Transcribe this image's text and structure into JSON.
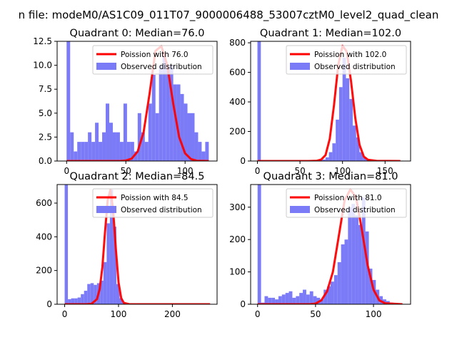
{
  "suptitle": "n file: modeM0/AS1C09_011T07_9000006488_53007cztM0_level2_quad_clean",
  "colors": {
    "bar": "#7b7bf7",
    "curve": "#ff0000",
    "axis": "#000000",
    "background": "#ffffff"
  },
  "chart_data": [
    {
      "type": "bar",
      "title": "Quadrant 0: Median=76.0",
      "xlim": [
        -8,
        127
      ],
      "ylim": [
        0,
        12.5
      ],
      "xticks": [
        0,
        50,
        100
      ],
      "xtick_labels": [
        "0",
        "50",
        "100"
      ],
      "yticks": [
        0,
        2.5,
        5,
        7.5,
        10,
        12.5
      ],
      "ytick_labels": [
        "0.0",
        "2.5",
        "5.0",
        "7.5",
        "10.0",
        "12.5"
      ],
      "legend": {
        "placement": "top-right",
        "curve_label": "Poission with 76.0",
        "bar_label": "Observed distribution"
      },
      "bin_edges": [
        0,
        3,
        6,
        9,
        12,
        15,
        18,
        21,
        24,
        27,
        30,
        33,
        36,
        39,
        42,
        45,
        48,
        51,
        54,
        57,
        60,
        63,
        66,
        69,
        72,
        75,
        78,
        81,
        84,
        87,
        90,
        93,
        96,
        99,
        102,
        105,
        108,
        111,
        114,
        117,
        120
      ],
      "counts": [
        12.5,
        3,
        1,
        2,
        2,
        2,
        3,
        2,
        4,
        2,
        3,
        6,
        4,
        3,
        3,
        2,
        6,
        2,
        2,
        1,
        5,
        3,
        2,
        6,
        9,
        5,
        10,
        11,
        10,
        10,
        8,
        8,
        7,
        6,
        5,
        5,
        3,
        2,
        1,
        2
      ],
      "curve": {
        "x": [
          0,
          45,
          50,
          55,
          60,
          65,
          70,
          75,
          80,
          85,
          90,
          95,
          100,
          105,
          110,
          120
        ],
        "y": [
          0,
          0,
          0.05,
          0.25,
          1,
          3,
          7,
          11.5,
          12,
          10,
          6,
          2.5,
          0.8,
          0.2,
          0.03,
          0
        ]
      }
    },
    {
      "type": "bar",
      "title": "Quadrant 1: Median=102.0",
      "xlim": [
        -8,
        180
      ],
      "ylim": [
        0,
        810
      ],
      "xticks": [
        0,
        50,
        100,
        150
      ],
      "xtick_labels": [
        "0",
        "50",
        "100",
        "150"
      ],
      "yticks": [
        0,
        200,
        400,
        600,
        800
      ],
      "ytick_labels": [
        "0",
        "200",
        "400",
        "600",
        "800"
      ],
      "legend": {
        "placement": "top-right",
        "curve_label": "Poission with 102.0",
        "bar_label": "Observed distribution"
      },
      "bin_edges": [
        0,
        4,
        8,
        12,
        16,
        20,
        24,
        28,
        32,
        36,
        40,
        44,
        48,
        52,
        56,
        60,
        64,
        68,
        72,
        76,
        80,
        84,
        88,
        92,
        96,
        100,
        104,
        108,
        112,
        116,
        120,
        124,
        128,
        132,
        136,
        140,
        144,
        148,
        152,
        156,
        160,
        164,
        168
      ],
      "counts": [
        810,
        2,
        2,
        1,
        1,
        1,
        1,
        1,
        1,
        1,
        1,
        1,
        1,
        1,
        1,
        1,
        2,
        3,
        5,
        10,
        25,
        60,
        120,
        280,
        500,
        700,
        560,
        420,
        240,
        160,
        60,
        25,
        10,
        4,
        3,
        2,
        2,
        1,
        1,
        1,
        1,
        1
      ],
      "curve": {
        "x": [
          0,
          60,
          70,
          75,
          80,
          85,
          90,
          95,
          100,
          105,
          110,
          115,
          120,
          125,
          130,
          140,
          168
        ],
        "y": [
          0,
          0,
          2,
          10,
          40,
          150,
          380,
          650,
          780,
          740,
          540,
          290,
          110,
          30,
          8,
          1,
          0
        ]
      }
    },
    {
      "type": "bar",
      "title": "Quadrant 2: Median=84.5",
      "xlim": [
        -14,
        283
      ],
      "ylim": [
        0,
        710
      ],
      "xticks": [
        0,
        100,
        200
      ],
      "xtick_labels": [
        "0",
        "100",
        "200"
      ],
      "yticks": [
        0,
        200,
        400,
        600
      ],
      "ytick_labels": [
        "0",
        "200",
        "400",
        "600"
      ],
      "legend": {
        "placement": "top-right",
        "curve_label": "Poission with 84.5",
        "bar_label": "Observed distribution"
      },
      "bin_edges": [
        0,
        6,
        12,
        18,
        24,
        30,
        36,
        42,
        48,
        54,
        60,
        66,
        72,
        78,
        84,
        90,
        96,
        102,
        108,
        114,
        120,
        126,
        132,
        138,
        144,
        150,
        156,
        162,
        168,
        174,
        180,
        186,
        192,
        198,
        204,
        210,
        216,
        222,
        228,
        234,
        240,
        246,
        252,
        258,
        264,
        270
      ],
      "counts": [
        710,
        30,
        35,
        35,
        40,
        60,
        80,
        120,
        125,
        115,
        125,
        140,
        250,
        480,
        680,
        460,
        120,
        35,
        5,
        2,
        1,
        1,
        1,
        1,
        1,
        1,
        1,
        1,
        1,
        1,
        1,
        1,
        1,
        1,
        1,
        1,
        1,
        1,
        1,
        1,
        1,
        1,
        1,
        1,
        1
      ],
      "curve": {
        "x": [
          0,
          40,
          50,
          60,
          65,
          70,
          75,
          80,
          85,
          90,
          95,
          100,
          105,
          110,
          120,
          270
        ],
        "y": [
          0,
          0,
          3,
          30,
          90,
          220,
          430,
          620,
          680,
          560,
          330,
          130,
          35,
          8,
          0,
          0
        ]
      }
    },
    {
      "type": "bar",
      "title": "Quadrant 3: Median=81.0",
      "xlim": [
        -6,
        132
      ],
      "ylim": [
        0,
        370
      ],
      "xticks": [
        0,
        50,
        100
      ],
      "xtick_labels": [
        "0",
        "50",
        "100"
      ],
      "yticks": [
        0,
        100,
        200,
        300
      ],
      "ytick_labels": [
        "0",
        "100",
        "200",
        "300"
      ],
      "legend": {
        "placement": "top-right",
        "curve_label": "Poission with 81.0",
        "bar_label": "Observed distribution"
      },
      "bin_edges": [
        0,
        3,
        6,
        9,
        12,
        15,
        18,
        21,
        24,
        27,
        30,
        33,
        36,
        39,
        42,
        45,
        48,
        51,
        54,
        57,
        60,
        63,
        66,
        69,
        72,
        75,
        78,
        81,
        84,
        87,
        90,
        93,
        96,
        99,
        102,
        105,
        108,
        111,
        114,
        117,
        120,
        123,
        126
      ],
      "counts": [
        370,
        5,
        25,
        20,
        20,
        15,
        25,
        30,
        35,
        40,
        20,
        25,
        35,
        45,
        30,
        40,
        25,
        20,
        15,
        45,
        55,
        70,
        90,
        130,
        185,
        200,
        300,
        310,
        275,
        245,
        330,
        225,
        110,
        75,
        45,
        25,
        15,
        10,
        5,
        2,
        1,
        1
      ],
      "curve": {
        "x": [
          0,
          45,
          50,
          55,
          60,
          65,
          70,
          75,
          80,
          85,
          90,
          95,
          100,
          105,
          110,
          125
        ],
        "y": [
          0,
          0,
          2,
          12,
          40,
          100,
          210,
          320,
          355,
          330,
          230,
          120,
          45,
          12,
          3,
          0
        ]
      }
    }
  ]
}
